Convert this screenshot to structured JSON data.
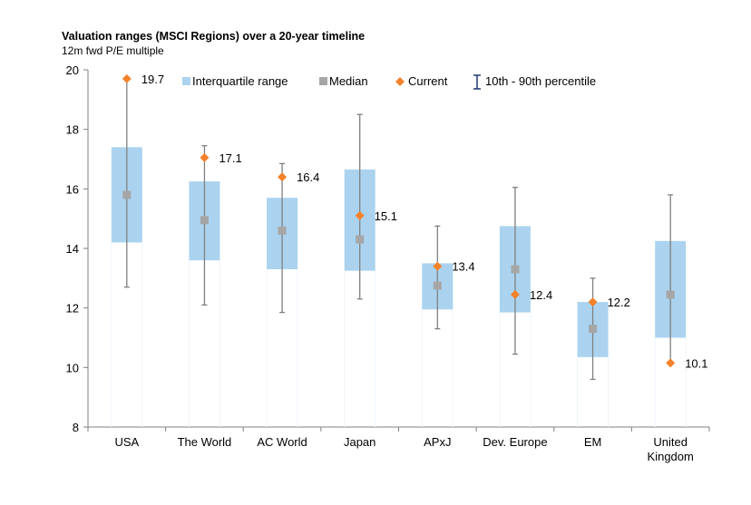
{
  "chart_data": {
    "type": "boxplot",
    "title": "Valuation ranges (MSCI Regions) over a 20-year timeline",
    "subtitle": "12m fwd P/E multiple",
    "ylim": [
      8,
      20
    ],
    "yticks": [
      8,
      10,
      12,
      14,
      16,
      18,
      20
    ],
    "legend": {
      "iqr": "Interquartile range",
      "median": "Median",
      "current": "Current",
      "range": "10th - 90th percentile"
    },
    "colors": {
      "iqr": "#abd3ef",
      "median": "#a6a6a6",
      "current": "#f4822a",
      "whisker": "#808080",
      "legend_whisker": "#1f3a6e"
    },
    "categories": [
      {
        "name": "USA",
        "p10": 12.7,
        "q1": 14.2,
        "median": 15.8,
        "q3": 17.4,
        "p90": 19.7,
        "current": 19.7,
        "current_label": "19.7"
      },
      {
        "name": "The World",
        "p10": 12.1,
        "q1": 13.6,
        "median": 14.95,
        "q3": 16.25,
        "p90": 17.45,
        "current": 17.05,
        "current_label": "17.1"
      },
      {
        "name": "AC World",
        "p10": 11.85,
        "q1": 13.3,
        "median": 14.6,
        "q3": 15.7,
        "p90": 16.85,
        "current": 16.4,
        "current_label": "16.4"
      },
      {
        "name": "Japan",
        "p10": 12.3,
        "q1": 13.25,
        "median": 14.3,
        "q3": 16.65,
        "p90": 18.5,
        "current": 15.1,
        "current_label": "15.1"
      },
      {
        "name": "APxJ",
        "p10": 11.3,
        "q1": 11.95,
        "median": 12.75,
        "q3": 13.5,
        "p90": 14.75,
        "current": 13.4,
        "current_label": "13.4"
      },
      {
        "name": "Dev. Europe",
        "p10": 10.45,
        "q1": 11.85,
        "median": 13.3,
        "q3": 14.75,
        "p90": 16.05,
        "current": 12.45,
        "current_label": "12.4"
      },
      {
        "name": "EM",
        "p10": 9.6,
        "q1": 10.35,
        "median": 11.3,
        "q3": 12.2,
        "p90": 13.0,
        "current": 12.2,
        "current_label": "12.2"
      },
      {
        "name": "United Kingdom",
        "p10": 10.15,
        "q1": 11.0,
        "median": 12.45,
        "q3": 14.25,
        "p90": 15.8,
        "current": 10.15,
        "current_label": "10.1"
      }
    ]
  }
}
